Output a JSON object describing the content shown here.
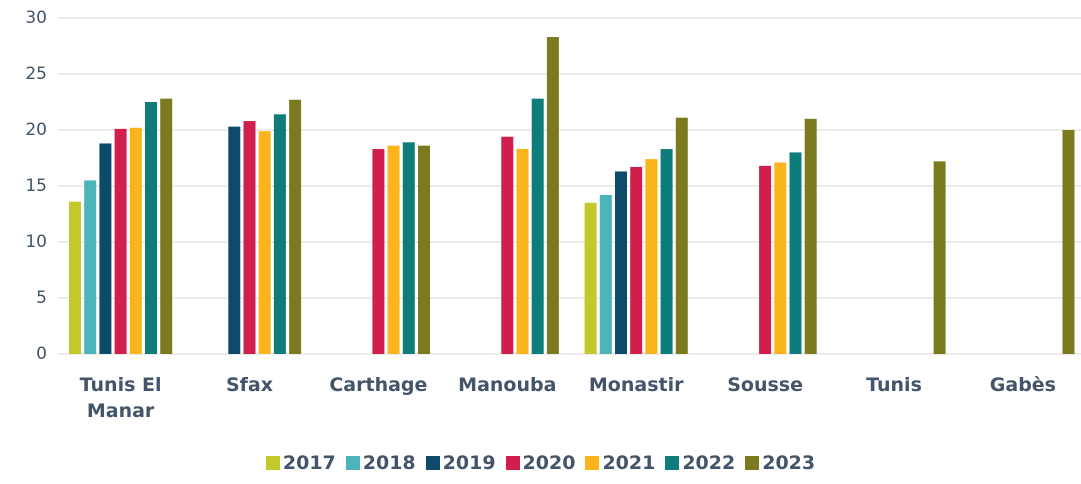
{
  "chart_data": {
    "type": "bar",
    "categories": [
      "Tunis El Manar",
      "Sfax",
      "Carthage",
      "Manouba",
      "Monastir",
      "Sousse",
      "Tunis",
      "Gabès"
    ],
    "series": [
      {
        "name": "2017",
        "color": "#c3c92a",
        "values": [
          13.6,
          null,
          null,
          null,
          13.5,
          null,
          null,
          null
        ]
      },
      {
        "name": "2018",
        "color": "#4bb4b9",
        "values": [
          15.5,
          null,
          null,
          null,
          14.2,
          null,
          null,
          null
        ]
      },
      {
        "name": "2019",
        "color": "#0e4b6a",
        "values": [
          18.8,
          20.3,
          null,
          null,
          16.3,
          null,
          null,
          null
        ]
      },
      {
        "name": "2020",
        "color": "#d11f4d",
        "values": [
          20.1,
          20.8,
          18.3,
          19.4,
          16.7,
          16.8,
          null,
          null
        ]
      },
      {
        "name": "2021",
        "color": "#fbb41c",
        "values": [
          20.2,
          19.9,
          18.6,
          18.3,
          17.4,
          17.1,
          null,
          null
        ]
      },
      {
        "name": "2022",
        "color": "#0e7c7b",
        "values": [
          22.5,
          21.4,
          18.9,
          22.8,
          18.3,
          18.0,
          null,
          null
        ]
      },
      {
        "name": "2023",
        "color": "#7b7a1f",
        "values": [
          22.8,
          22.7,
          18.6,
          28.3,
          21.1,
          21.0,
          17.2,
          20.0
        ]
      }
    ],
    "ylim": [
      0,
      30
    ],
    "yticks": [
      0,
      5,
      10,
      15,
      20,
      25,
      30
    ],
    "grid": true
  }
}
